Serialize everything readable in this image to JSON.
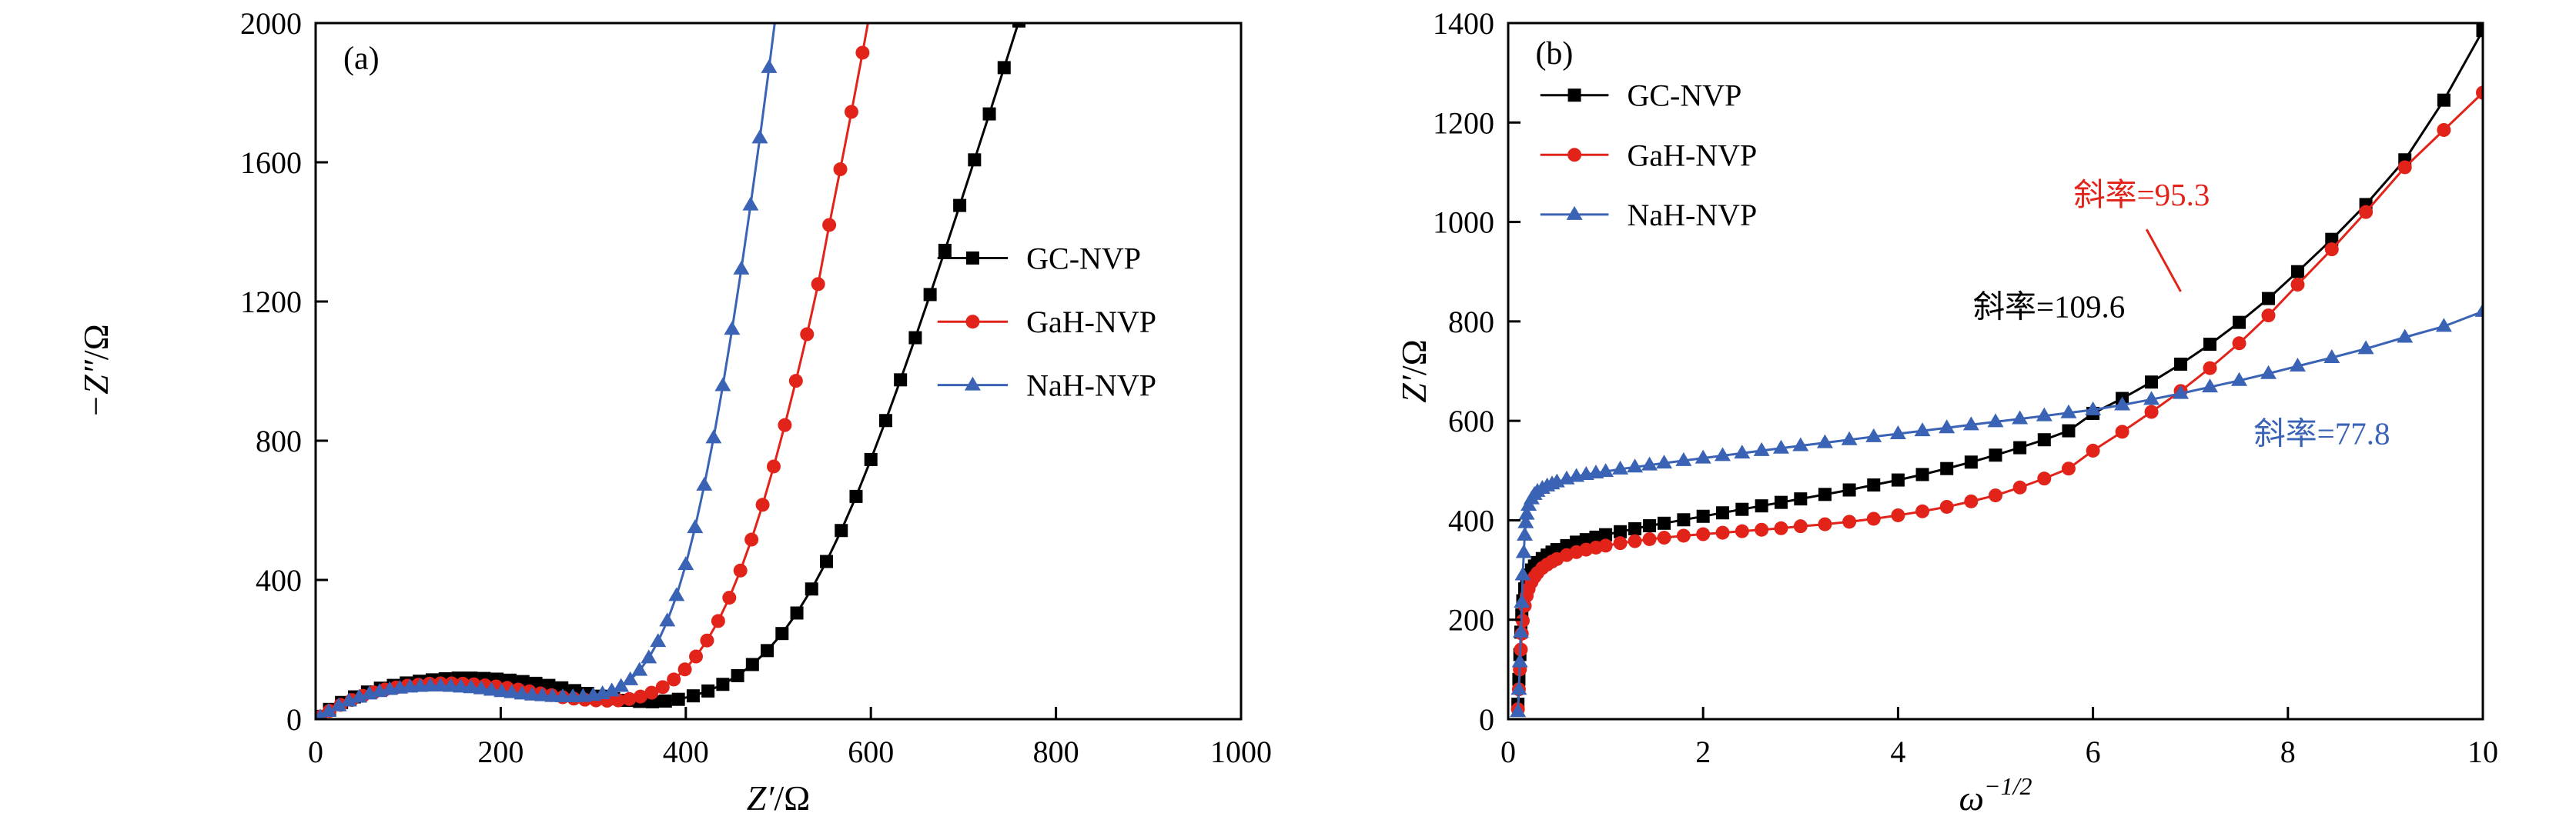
{
  "figure": {
    "background": "#ffffff"
  },
  "colors": {
    "black": "#000000",
    "red": "#e2231a",
    "blue": "#3b63b5",
    "axis": "#000000"
  },
  "chart_data": [
    {
      "id": "panel-a",
      "type": "line",
      "panel_label": "(a)",
      "xlabel": {
        "italic": "Z′",
        "rest": "/Ω"
      },
      "ylabel": {
        "italic": "−Z″",
        "rest": "/Ω"
      },
      "xlim": [
        0,
        1000
      ],
      "ylim": [
        0,
        2000
      ],
      "xticks": [
        0,
        200,
        400,
        600,
        800,
        1000
      ],
      "yticks": [
        0,
        400,
        800,
        1200,
        1600,
        2000
      ],
      "grid": false,
      "panel_label_pos": {
        "x": 30,
        "y": 1900
      },
      "legend": {
        "position": "center-right",
        "line_x1": 672,
        "line_x2": 748,
        "text_x": 768,
        "rows_y": [
          1325,
          1142,
          960
        ]
      },
      "series": [
        {
          "name": "GC-NVP",
          "color": "#000000",
          "marker": "square",
          "x": [
            5,
            15,
            28,
            42,
            56,
            70,
            84,
            98,
            112,
            126,
            140,
            154,
            168,
            182,
            196,
            210,
            224,
            238,
            252,
            266,
            280,
            294,
            308,
            322,
            336,
            350,
            364,
            378,
            392,
            408,
            424,
            440,
            456,
            472,
            488,
            504,
            520,
            536,
            552,
            568,
            584,
            600,
            616,
            632,
            648,
            664,
            680,
            696,
            712,
            728,
            744,
            760,
            776
          ],
          "y": [
            8,
            28,
            48,
            64,
            78,
            89,
            97,
            104,
            109,
            113,
            116,
            118,
            118,
            117,
            115,
            112,
            108,
            103,
            97,
            90,
            82,
            74,
            66,
            59,
            54,
            51,
            50,
            52,
            57,
            67,
            81,
            100,
            125,
            157,
            197,
            246,
            305,
            374,
            453,
            542,
            640,
            746,
            858,
            975,
            1096,
            1220,
            1347,
            1476,
            1607,
            1739,
            1872,
            2006,
            2141
          ]
        },
        {
          "name": "GaH-NVP",
          "color": "#e2231a",
          "marker": "circle",
          "x": [
            5,
            15,
            27,
            39,
            51,
            63,
            75,
            87,
            99,
            111,
            123,
            135,
            147,
            159,
            171,
            183,
            195,
            207,
            219,
            231,
            243,
            255,
            267,
            279,
            291,
            303,
            315,
            327,
            339,
            351,
            363,
            375,
            387,
            399,
            411,
            423,
            435,
            447,
            459,
            471,
            483,
            495,
            507,
            519,
            531,
            543,
            555,
            567,
            579,
            591,
            603
          ],
          "y": [
            7,
            24,
            41,
            55,
            67,
            77,
            85,
            91,
            96,
            99,
            102,
            103,
            103,
            102,
            100,
            97,
            94,
            90,
            85,
            80,
            74,
            69,
            63,
            59,
            56,
            54,
            53,
            54,
            58,
            65,
            76,
            92,
            114,
            143,
            180,
            226,
            282,
            349,
            427,
            516,
            616,
            726,
            845,
            972,
            1106,
            1250,
            1420,
            1580,
            1745,
            1915,
            2090
          ]
        },
        {
          "name": "NaH-NVP",
          "color": "#3b63b5",
          "marker": "triangle",
          "x": [
            5,
            14,
            25,
            36,
            47,
            58,
            69,
            80,
            91,
            102,
            113,
            124,
            135,
            146,
            157,
            168,
            179,
            190,
            201,
            212,
            223,
            234,
            245,
            256,
            267,
            278,
            289,
            300,
            310,
            320,
            330,
            340,
            350,
            360,
            370,
            380,
            390,
            400,
            410,
            420,
            430,
            440,
            450,
            460,
            470,
            480,
            490,
            500
          ],
          "y": [
            6,
            22,
            38,
            52,
            63,
            72,
            79,
            85,
            89,
            92,
            94,
            95,
            95,
            94,
            92,
            90,
            87,
            83,
            79,
            76,
            72,
            69,
            67,
            65,
            64,
            64,
            65,
            68,
            73,
            81,
            94,
            113,
            140,
            176,
            223,
            282,
            355,
            444,
            550,
            672,
            808,
            958,
            1120,
            1293,
            1477,
            1670,
            1872,
            2082
          ]
        }
      ]
    },
    {
      "id": "panel-b",
      "type": "line",
      "panel_label": "(b)",
      "xlabel": {
        "italic": "ω",
        "sup": "−1/2",
        "rest": ""
      },
      "ylabel": {
        "italic": "Z′",
        "rest": "/Ω"
      },
      "xlim": [
        0,
        10
      ],
      "ylim": [
        0,
        1400
      ],
      "xticks": [
        0,
        2,
        4,
        6,
        8,
        10
      ],
      "yticks": [
        0,
        200,
        400,
        600,
        800,
        1000,
        1200,
        1400
      ],
      "grid": false,
      "panel_label_pos": {
        "x": 0.28,
        "y": 1340
      },
      "legend": {
        "position": "top-left",
        "line_x1": 0.33,
        "line_x2": 1.03,
        "text_x": 1.22,
        "rows_y": [
          1255,
          1135,
          1015
        ]
      },
      "annotations": [
        {
          "text": "斜率=109.6",
          "color": "#000000",
          "x": 5.55,
          "y": 830
        },
        {
          "text": "斜率=95.3",
          "color": "#e2231a",
          "x": 6.5,
          "y": 1055,
          "leader": {
            "x1": 6.55,
            "y1": 985,
            "x2": 6.9,
            "y2": 860
          }
        },
        {
          "text": "斜率=77.8",
          "color": "#3b63b5",
          "x": 8.35,
          "y": 575
        }
      ],
      "series": [
        {
          "name": "GC-NVP",
          "color": "#000000",
          "marker": "square",
          "x": [
            0.1,
            0.11,
            0.12,
            0.13,
            0.14,
            0.15,
            0.17,
            0.19,
            0.21,
            0.24,
            0.27,
            0.3,
            0.35,
            0.4,
            0.45,
            0.5,
            0.6,
            0.7,
            0.8,
            0.9,
            1.0,
            1.15,
            1.3,
            1.45,
            1.6,
            1.8,
            2.0,
            2.2,
            2.4,
            2.6,
            2.8,
            3.0,
            3.25,
            3.5,
            3.75,
            4.0,
            4.25,
            4.5,
            4.75,
            5.0,
            5.25,
            5.5,
            5.75,
            6.0,
            6.3,
            6.6,
            6.9,
            7.2,
            7.5,
            7.8,
            8.1,
            8.45,
            8.8,
            9.2,
            9.6,
            10.0
          ],
          "y": [
            30,
            80,
            130,
            175,
            210,
            238,
            262,
            278,
            290,
            300,
            308,
            315,
            323,
            330,
            336,
            341,
            349,
            356,
            361,
            366,
            371,
            377,
            383,
            389,
            394,
            401,
            408,
            415,
            422,
            429,
            436,
            443,
            452,
            461,
            471,
            481,
            492,
            504,
            517,
            531,
            546,
            562,
            580,
            615,
            645,
            678,
            714,
            754,
            798,
            846,
            900,
            965,
            1035,
            1125,
            1245,
            1385
          ]
        },
        {
          "name": "GaH-NVP",
          "color": "#e2231a",
          "marker": "circle",
          "x": [
            0.1,
            0.11,
            0.12,
            0.13,
            0.14,
            0.15,
            0.17,
            0.19,
            0.21,
            0.24,
            0.27,
            0.3,
            0.35,
            0.4,
            0.45,
            0.5,
            0.6,
            0.7,
            0.8,
            0.9,
            1.0,
            1.15,
            1.3,
            1.45,
            1.6,
            1.8,
            2.0,
            2.2,
            2.4,
            2.6,
            2.8,
            3.0,
            3.25,
            3.5,
            3.75,
            4.0,
            4.25,
            4.5,
            4.75,
            5.0,
            5.25,
            5.5,
            5.75,
            6.0,
            6.3,
            6.6,
            6.9,
            7.2,
            7.5,
            7.8,
            8.1,
            8.45,
            8.8,
            9.2,
            9.6,
            10.0
          ],
          "y": [
            20,
            60,
            100,
            140,
            172,
            198,
            228,
            248,
            262,
            276,
            286,
            294,
            304,
            311,
            317,
            322,
            330,
            336,
            341,
            345,
            349,
            354,
            358,
            362,
            365,
            369,
            372,
            375,
            378,
            381,
            384,
            388,
            392,
            397,
            403,
            410,
            418,
            427,
            438,
            450,
            466,
            484,
            504,
            540,
            578,
            618,
            660,
            706,
            756,
            812,
            874,
            945,
            1020,
            1110,
            1185,
            1260
          ]
        },
        {
          "name": "NaH-NVP",
          "color": "#3b63b5",
          "marker": "triangle",
          "x": [
            0.1,
            0.11,
            0.12,
            0.13,
            0.14,
            0.15,
            0.16,
            0.17,
            0.18,
            0.19,
            0.21,
            0.24,
            0.27,
            0.3,
            0.35,
            0.4,
            0.45,
            0.5,
            0.6,
            0.7,
            0.8,
            0.9,
            1.0,
            1.15,
            1.3,
            1.45,
            1.6,
            1.8,
            2.0,
            2.2,
            2.4,
            2.6,
            2.8,
            3.0,
            3.25,
            3.5,
            3.75,
            4.0,
            4.25,
            4.5,
            4.75,
            5.0,
            5.25,
            5.5,
            5.75,
            6.0,
            6.3,
            6.6,
            6.9,
            7.2,
            7.5,
            7.8,
            8.1,
            8.45,
            8.8,
            9.2,
            9.6,
            10.0
          ],
          "y": [
            15,
            60,
            115,
            175,
            235,
            290,
            335,
            370,
            395,
            412,
            430,
            443,
            452,
            458,
            464,
            469,
            473,
            477,
            483,
            488,
            492,
            495,
            498,
            503,
            507,
            511,
            515,
            520,
            525,
            530,
            535,
            540,
            545,
            550,
            556,
            562,
            568,
            574,
            580,
            586,
            592,
            598,
            604,
            610,
            616,
            622,
            632,
            643,
            655,
            668,
            681,
            695,
            710,
            727,
            745,
            768,
            790,
            820
          ]
        }
      ]
    }
  ]
}
